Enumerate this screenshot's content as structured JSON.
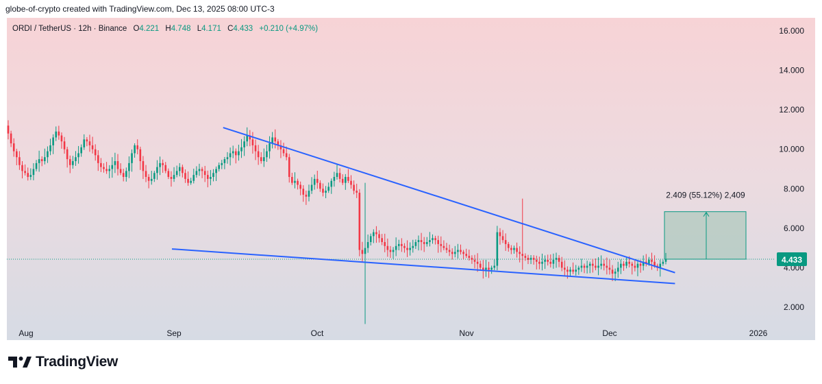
{
  "header": {
    "attribution": "globe-of-crypto created with TradingView.com, Dec 13, 2025 08:00 UTC-3"
  },
  "legend": {
    "symbol": "ORDI / TetherUS · 12h · Binance",
    "open_label": "O",
    "open": "4.221",
    "high_label": "H",
    "high": "4.748",
    "low_label": "L",
    "low": "4.171",
    "close_label": "C",
    "close": "4.433",
    "change": "+0.210 (+4.97%)"
  },
  "footer": {
    "brand": "TradingView"
  },
  "colors": {
    "up": "#089981",
    "down": "#f23645",
    "trendline": "#2962ff",
    "price_tag": "#089981"
  },
  "chart_data": {
    "type": "candlestick",
    "yticks": [
      "16.000",
      "14.000",
      "12.000",
      "10.000",
      "8.000",
      "6.000",
      "4.000",
      "2.000"
    ],
    "ylim": [
      0.9,
      16.6
    ],
    "xticks": [
      "Aug",
      "Sep",
      "Oct",
      "Nov",
      "Dec",
      "2026"
    ],
    "last_price": "4.433",
    "measure_label": "2.409 (55.12%) 2,409",
    "closes": [
      10.8,
      10.3,
      9.9,
      9.6,
      9.2,
      8.9,
      8.8,
      8.6,
      8.7,
      9.0,
      9.3,
      9.5,
      9.4,
      9.6,
      9.9,
      10.2,
      10.6,
      10.9,
      10.7,
      10.4,
      10.0,
      9.5,
      9.2,
      9.4,
      9.6,
      9.8,
      10.1,
      10.5,
      10.4,
      10.2,
      10.0,
      9.7,
      9.3,
      9.1,
      9.0,
      8.9,
      9.0,
      9.2,
      9.4,
      9.0,
      8.8,
      8.6,
      8.9,
      9.3,
      9.8,
      10.2,
      10.0,
      9.4,
      8.9,
      8.6,
      8.4,
      8.5,
      8.8,
      9.1,
      9.3,
      9.2,
      8.9,
      8.6,
      8.5,
      8.7,
      8.9,
      9.1,
      8.8,
      8.5,
      8.3,
      8.4,
      8.7,
      8.9,
      9.0,
      8.9,
      8.7,
      8.5,
      8.6,
      8.8,
      9.0,
      9.2,
      9.3,
      9.5,
      9.6,
      9.8,
      9.9,
      9.7,
      9.9,
      10.1,
      10.4,
      10.7,
      10.5,
      10.2,
      9.9,
      9.6,
      9.4,
      9.6,
      9.9,
      10.3,
      10.6,
      10.4,
      10.2,
      10.0,
      9.8,
      9.6,
      8.6,
      8.3,
      8.4,
      8.2,
      8.0,
      7.7,
      7.6,
      7.9,
      8.2,
      8.5,
      8.3,
      8.0,
      7.8,
      7.9,
      8.1,
      8.4,
      8.6,
      8.8,
      8.5,
      8.3,
      8.6,
      8.4,
      8.2,
      7.9,
      7.8,
      4.9,
      4.7,
      5.0,
      5.3,
      5.6,
      5.8,
      5.7,
      5.5,
      5.3,
      5.1,
      4.9,
      4.8,
      4.9,
      5.1,
      5.2,
      5.1,
      5.0,
      4.9,
      5.0,
      5.1,
      5.3,
      5.4,
      5.3,
      5.2,
      5.3,
      5.4,
      5.5,
      5.4,
      5.2,
      5.1,
      5.0,
      4.9,
      4.8,
      4.7,
      4.8,
      4.9,
      4.8,
      4.7,
      4.6,
      4.5,
      4.4,
      4.3,
      4.2,
      4.0,
      3.9,
      4.0,
      3.9,
      4.0,
      4.1,
      5.8,
      5.6,
      5.4,
      5.2,
      5.0,
      4.9,
      5.0,
      4.8,
      4.7,
      4.6,
      4.5,
      4.4,
      4.5,
      4.4,
      4.3,
      4.2,
      4.3,
      4.4,
      4.3,
      4.2,
      4.4,
      4.5,
      4.3,
      4.0,
      3.9,
      3.8,
      3.9,
      3.8,
      3.9,
      4.0,
      4.1,
      4.0,
      4.1,
      4.2,
      4.1,
      4.0,
      4.1,
      4.2,
      4.1,
      4.0,
      3.9,
      3.7,
      3.8,
      4.0,
      4.2,
      4.1,
      4.3,
      4.2,
      4.1,
      4.0,
      4.2,
      4.1,
      4.3,
      4.2,
      4.4,
      4.3,
      4.1,
      4.0,
      4.2,
      4.3,
      4.433
    ],
    "trendlines": [
      {
        "name": "upper",
        "from": [
          "Sep 14",
          11.1
        ],
        "to": [
          "Dec 20",
          3.75
        ]
      },
      {
        "name": "lower",
        "from": [
          "Sep 3",
          4.95
        ],
        "to": [
          "Dec 20",
          3.2
        ]
      }
    ],
    "measure_box": {
      "top": 6.84,
      "bottom": 4.433
    }
  }
}
